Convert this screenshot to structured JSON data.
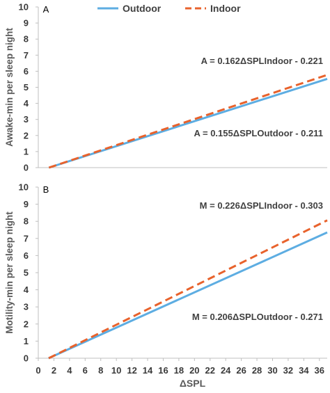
{
  "chart_data": [
    {
      "type": "line",
      "panel_label": "A",
      "ylabel": "Awake-min per sleep night",
      "ylim": [
        0,
        10
      ],
      "yticks": [
        0,
        1,
        2,
        3,
        4,
        5,
        6,
        7,
        8,
        9,
        10
      ],
      "xlim": [
        0,
        37
      ],
      "series": [
        {
          "name": "Outdoor",
          "color": "#5DADE2",
          "dash": "solid",
          "x": [
            0,
            37
          ],
          "y": [
            -0.211,
            5.524
          ]
        },
        {
          "name": "Indoor",
          "color": "#E8622C",
          "dash": "dashed",
          "x": [
            0,
            37
          ],
          "y": [
            -0.221,
            5.773
          ]
        }
      ],
      "annotations": [
        {
          "text": "A = 0.162ΔSPLIndoor - 0.221"
        },
        {
          "text": "A = 0.155ΔSPLOutdoor - 0.211"
        }
      ]
    },
    {
      "type": "line",
      "panel_label": "B",
      "ylabel": "Motility-min per sleep night",
      "xlabel": "ΔSPL",
      "ylim": [
        0,
        10
      ],
      "yticks": [
        0,
        1,
        2,
        3,
        4,
        5,
        6,
        7,
        8,
        9,
        10
      ],
      "xlim": [
        0,
        37
      ],
      "xticks": [
        0,
        2,
        4,
        6,
        8,
        10,
        12,
        14,
        16,
        18,
        20,
        22,
        24,
        26,
        28,
        30,
        32,
        34,
        36
      ],
      "series": [
        {
          "name": "Outdoor",
          "color": "#5DADE2",
          "dash": "solid",
          "x": [
            0,
            37
          ],
          "y": [
            -0.271,
            7.351
          ]
        },
        {
          "name": "Indoor",
          "color": "#E8622C",
          "dash": "dashed",
          "x": [
            0,
            37
          ],
          "y": [
            -0.303,
            8.059
          ]
        }
      ],
      "annotations": [
        {
          "text": "M = 0.226ΔSPLIndoor - 0.303"
        },
        {
          "text": "M = 0.206ΔSPLOutdoor - 0.271"
        }
      ]
    }
  ],
  "legend": {
    "placement": "top-center",
    "items": [
      {
        "label": "Outdoor",
        "color": "#5DADE2",
        "dash": "solid"
      },
      {
        "label": "Indoor",
        "color": "#E8622C",
        "dash": "dashed"
      }
    ]
  }
}
